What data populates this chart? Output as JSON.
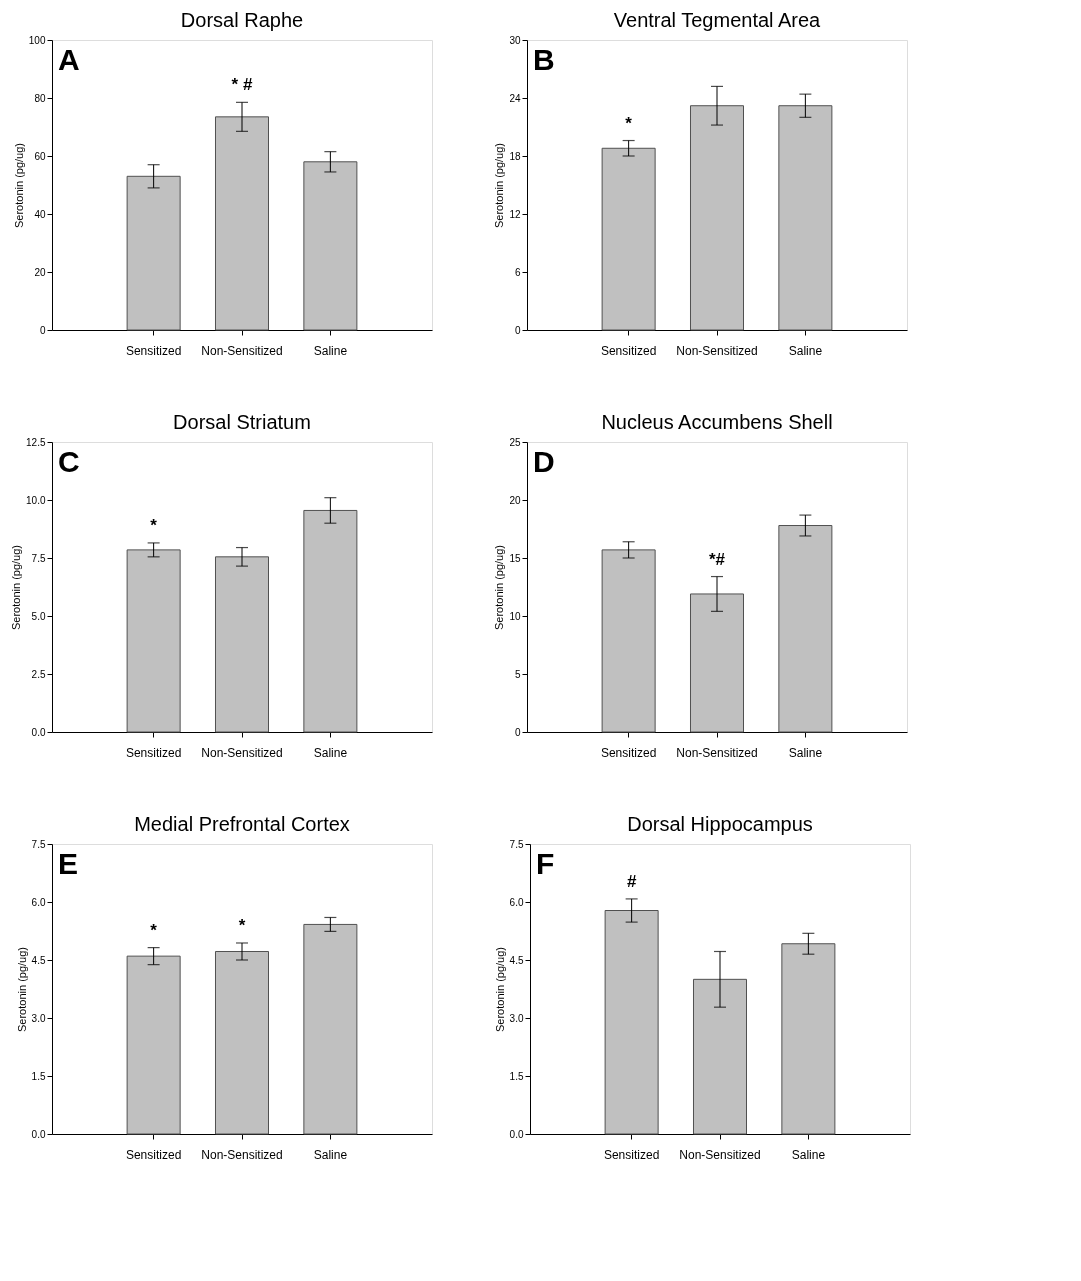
{
  "chart_data": [
    {
      "type": "bar",
      "title": "Dorsal Raphe",
      "ylabel": "Serotonin (pg/ug)",
      "categories": [
        "Sensitized",
        "Non-Sensitized",
        "Saline"
      ],
      "values": [
        53,
        73.5,
        58
      ],
      "errors": [
        4,
        5,
        3.5
      ],
      "value_labels": [
        null,
        "* #",
        null
      ],
      "color": "#c0c0c0",
      "ylim": [
        0,
        100
      ],
      "yticks": [
        0,
        20,
        40,
        60,
        80,
        100
      ],
      "grid": false,
      "annotations": [
        "A"
      ]
    },
    {
      "type": "bar",
      "title": "Ventral Tegmental Area",
      "ylabel": "Serotonin (pg/ug)",
      "categories": [
        "Sensitized",
        "Non-Sensitized",
        "Saline"
      ],
      "values": [
        18.8,
        23.2,
        23.2
      ],
      "errors": [
        0.8,
        2,
        1.2
      ],
      "value_labels": [
        "*",
        null,
        null
      ],
      "color": "#c0c0c0",
      "ylim": [
        0,
        30
      ],
      "yticks": [
        0,
        6,
        12,
        18,
        24,
        30
      ],
      "grid": false,
      "annotations": [
        "B"
      ]
    },
    {
      "type": "bar",
      "title": "Dorsal Striatum",
      "ylabel": "Serotonin (pg/ug)",
      "categories": [
        "Sensitized",
        "Non-Sensitized",
        "Saline"
      ],
      "values": [
        7.85,
        7.55,
        9.55
      ],
      "errors": [
        0.3,
        0.4,
        0.55
      ],
      "value_labels": [
        "*",
        null,
        null
      ],
      "color": "#c0c0c0",
      "ylim": [
        0,
        12.5
      ],
      "yticks": [
        {
          "value": 0,
          "label": "0.0"
        },
        2.5,
        {
          "value": 5,
          "label": "5.0"
        },
        7.5,
        {
          "value": 10,
          "label": "10.0"
        },
        12.5
      ],
      "grid": false,
      "annotations": [
        "C"
      ]
    },
    {
      "type": "bar",
      "title": "Nucleus Accumbens Shell",
      "ylabel": "Serotonin (pg/ug)",
      "categories": [
        "Sensitized",
        "Non-Sensitized",
        "Saline"
      ],
      "values": [
        15.7,
        11.9,
        17.8
      ],
      "errors": [
        0.7,
        1.5,
        0.9
      ],
      "value_labels": [
        null,
        "*#",
        null
      ],
      "color": "#c0c0c0",
      "ylim": [
        0,
        25
      ],
      "yticks": [
        0,
        5,
        10,
        15,
        20,
        25
      ],
      "grid": false,
      "annotations": [
        "D"
      ]
    },
    {
      "type": "bar",
      "title": "Medial Prefrontal Cortex",
      "ylabel": "Serotonin (pg/ug)",
      "categories": [
        "Sensitized",
        "Non-Sensitized",
        "Saline"
      ],
      "values": [
        4.6,
        4.72,
        5.42
      ],
      "errors": [
        0.22,
        0.22,
        0.18
      ],
      "value_labels": [
        "*",
        "*",
        null
      ],
      "color": "#c0c0c0",
      "ylim": [
        0,
        7.5
      ],
      "yticks": [
        {
          "value": 0,
          "label": "0.0"
        },
        1.5,
        {
          "value": 3,
          "label": "3.0"
        },
        4.5,
        {
          "value": 6,
          "label": "6.0"
        },
        7.5
      ],
      "grid": false,
      "annotations": [
        "E"
      ]
    },
    {
      "type": "bar",
      "title": "Dorsal Hippocampus",
      "ylabel": "Serotonin (pg/ug)",
      "categories": [
        "Sensitized",
        "Non-Sensitized",
        "Saline"
      ],
      "values": [
        5.78,
        4.0,
        4.92
      ],
      "errors": [
        0.3,
        0.72,
        0.27
      ],
      "value_labels": [
        "#",
        null,
        null
      ],
      "color": "#c0c0c0",
      "ylim": [
        0,
        7.5
      ],
      "yticks": [
        {
          "value": 0,
          "label": "0.0"
        },
        1.5,
        {
          "value": 3,
          "label": "3.0"
        },
        4.5,
        {
          "value": 6,
          "label": "6.0"
        },
        7.5
      ],
      "grid": false,
      "annotations": [
        "F"
      ]
    }
  ]
}
